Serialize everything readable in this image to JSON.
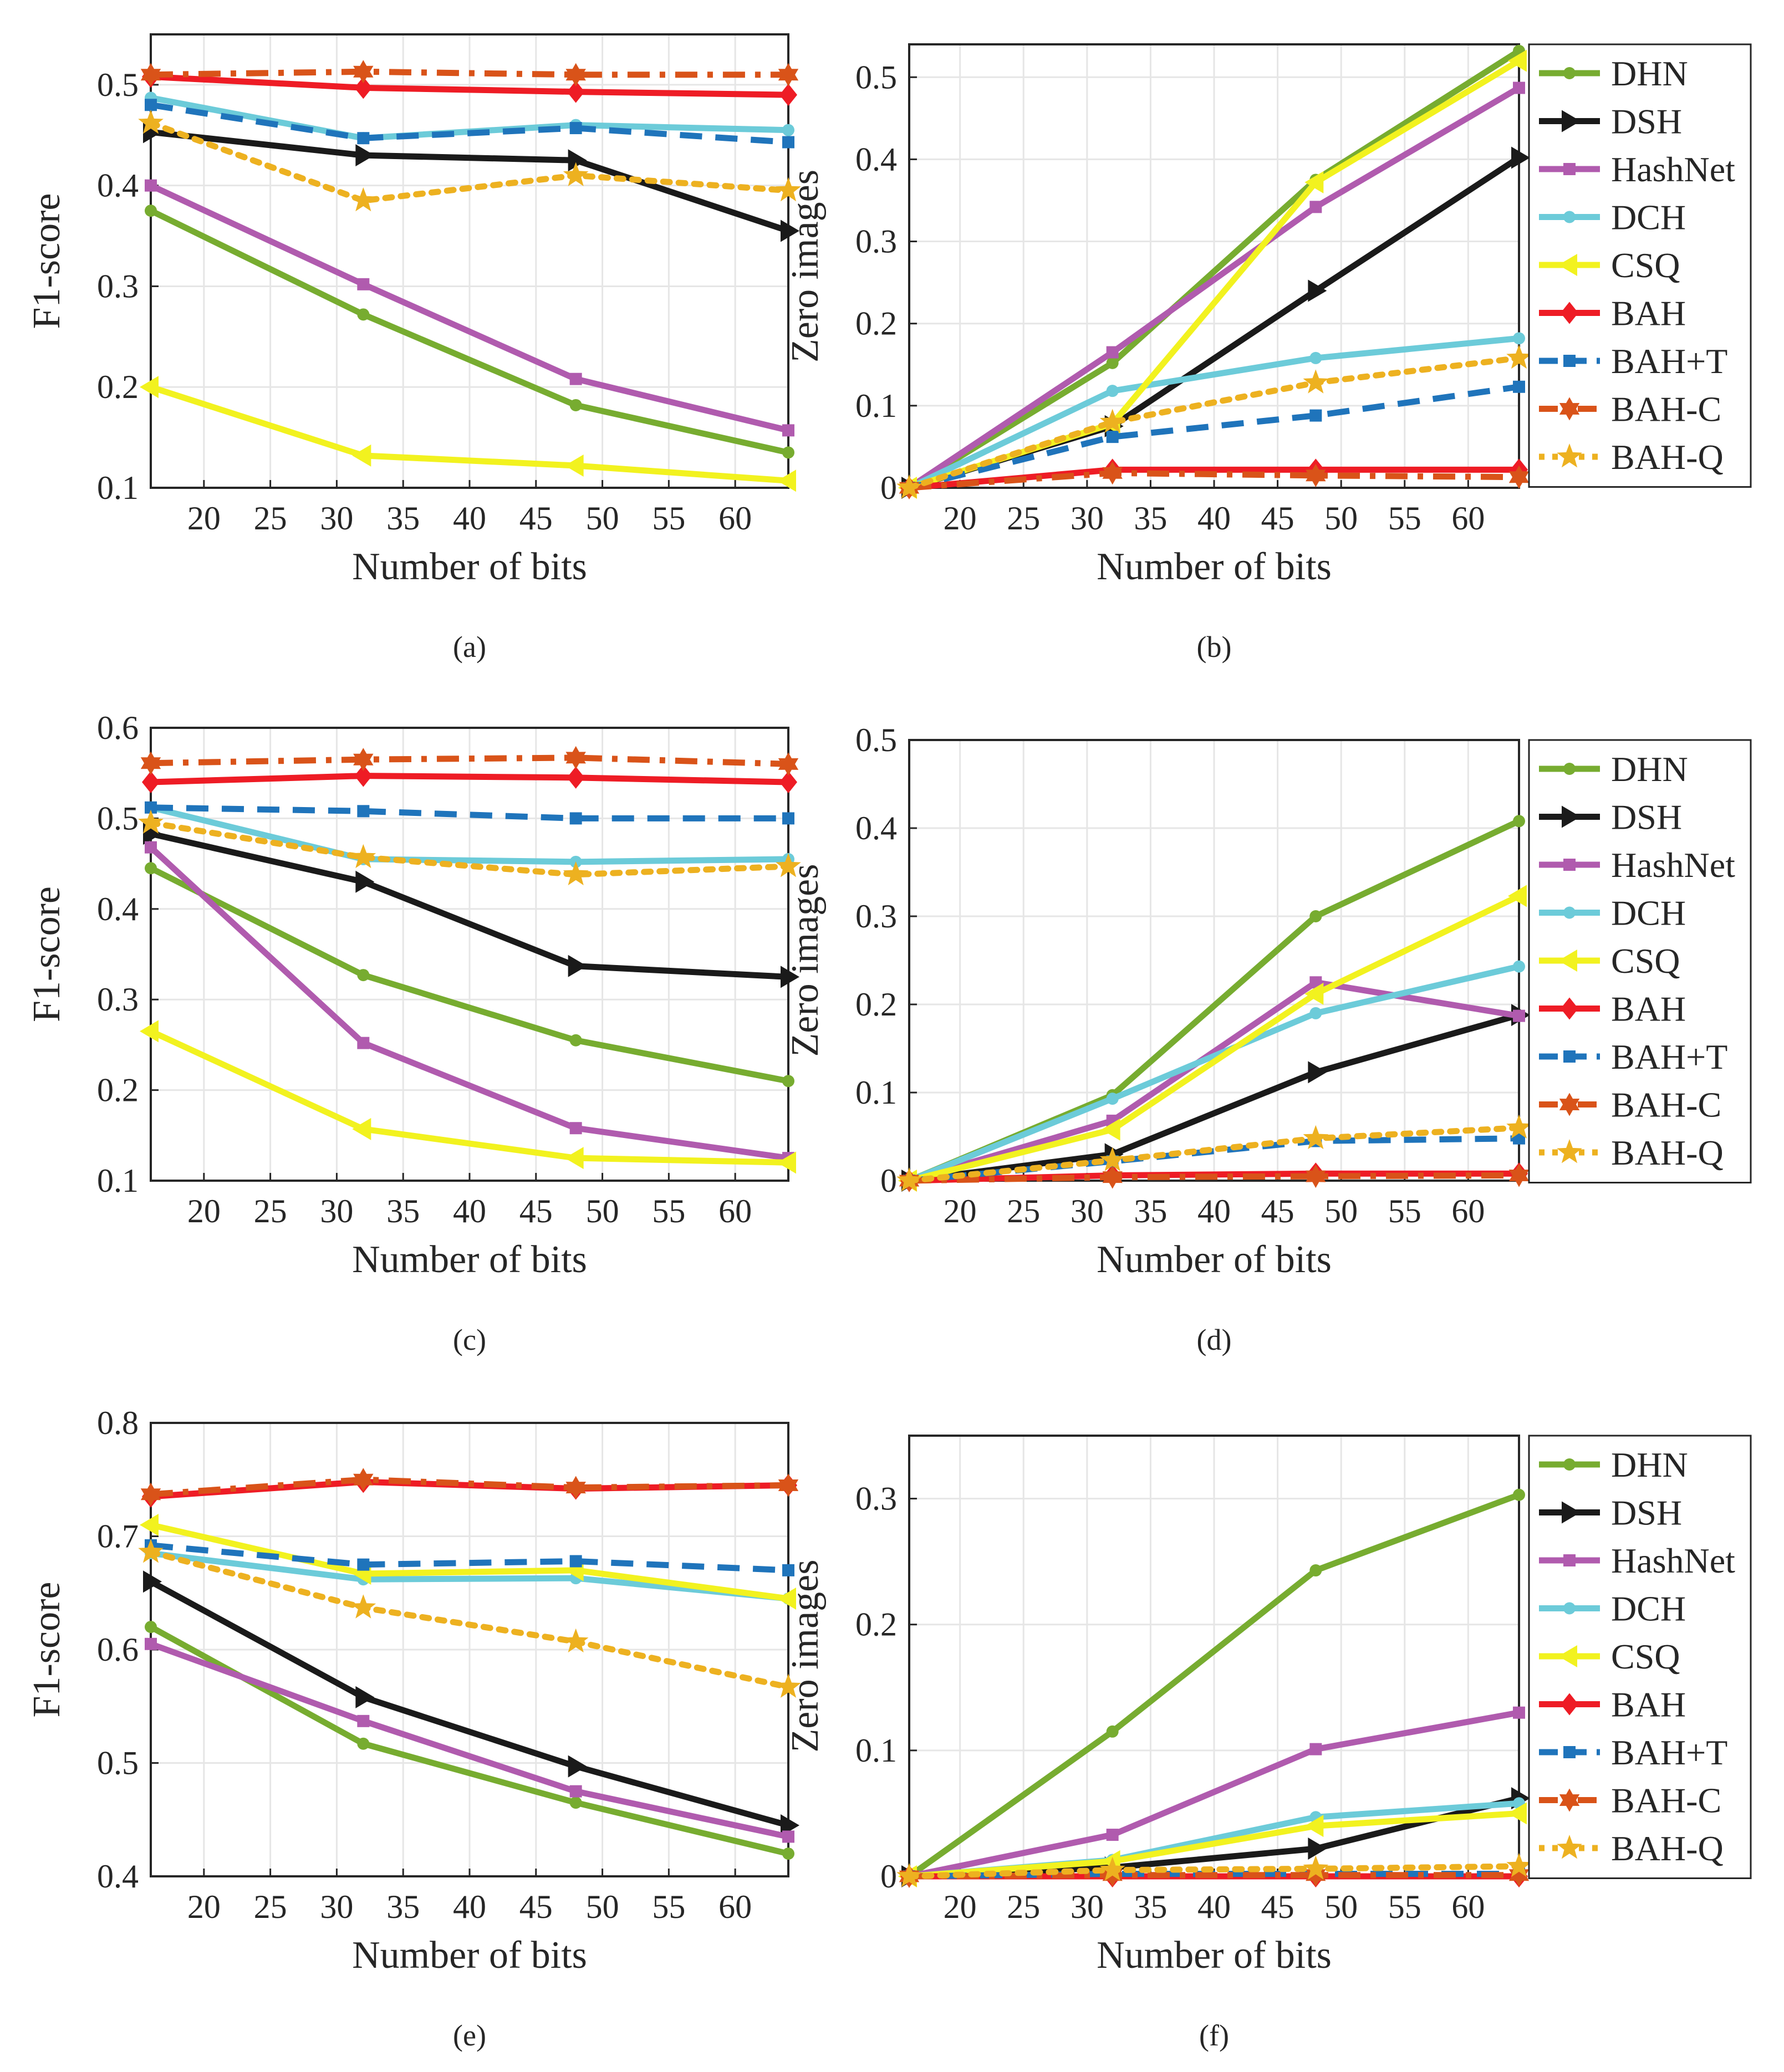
{
  "figure": {
    "series_styles": [
      {
        "name": "DHN",
        "color": "#77AC30",
        "marker": "circle",
        "dash": "solid"
      },
      {
        "name": "DSH",
        "color": "#1a1a1a",
        "marker": "tri-right",
        "dash": "solid"
      },
      {
        "name": "HashNet",
        "color": "#B05BAE",
        "marker": "square",
        "dash": "solid"
      },
      {
        "name": "DCH",
        "color": "#6CCBD9",
        "marker": "circle",
        "dash": "solid"
      },
      {
        "name": "CSQ",
        "color": "#F2F21F",
        "marker": "tri-left",
        "dash": "solid"
      },
      {
        "name": "BAH",
        "color": "#EE1C25",
        "marker": "diamond",
        "dash": "solid"
      },
      {
        "name": "BAH+T",
        "color": "#1F74BB",
        "marker": "square",
        "dash": "dash"
      },
      {
        "name": "BAH-C",
        "color": "#D95319",
        "marker": "hexagram",
        "dash": "dashdot"
      },
      {
        "name": "BAH-Q",
        "color": "#EDB120",
        "marker": "pentagram",
        "dash": "dot"
      }
    ]
  },
  "chart_data": [
    {
      "type": "line",
      "caption": "(a)",
      "xlabel": "Number of bits",
      "ylabel": "F1-score",
      "xlim": [
        16,
        64
      ],
      "ylim": [
        0.1,
        0.55
      ],
      "legend": false,
      "xticks": [
        20,
        25,
        30,
        35,
        40,
        45,
        50,
        55,
        60
      ],
      "yticks": [
        0.1,
        0.2,
        0.3,
        0.4,
        0.5
      ],
      "ytick_labels": [
        "0.1",
        "0.2",
        "0.3",
        "0.4",
        "0.5"
      ],
      "x": [
        16,
        32,
        48,
        64
      ],
      "series": [
        {
          "name": "DHN",
          "values": [
            0.375,
            0.272,
            0.182,
            0.135
          ]
        },
        {
          "name": "DSH",
          "values": [
            0.453,
            0.43,
            0.425,
            0.355
          ]
        },
        {
          "name": "HashNet",
          "values": [
            0.4,
            0.302,
            0.208,
            0.157
          ]
        },
        {
          "name": "DCH",
          "values": [
            0.487,
            0.447,
            0.46,
            0.455
          ]
        },
        {
          "name": "CSQ",
          "values": [
            0.2,
            0.132,
            0.122,
            0.107
          ]
        },
        {
          "name": "BAH",
          "values": [
            0.508,
            0.497,
            0.493,
            0.49
          ]
        },
        {
          "name": "BAH+T",
          "values": [
            0.48,
            0.447,
            0.457,
            0.443
          ]
        },
        {
          "name": "BAH-C",
          "values": [
            0.51,
            0.513,
            0.51,
            0.51
          ]
        },
        {
          "name": "BAH-Q",
          "values": [
            0.462,
            0.385,
            0.41,
            0.395
          ]
        }
      ]
    },
    {
      "type": "line",
      "caption": "(b)",
      "xlabel": "Number of bits",
      "ylabel": "Zero images",
      "xlim": [
        16,
        64
      ],
      "ylim": [
        0,
        0.54
      ],
      "legend": true,
      "xticks": [
        20,
        25,
        30,
        35,
        40,
        45,
        50,
        55,
        60
      ],
      "yticks": [
        0,
        0.1,
        0.2,
        0.3,
        0.4,
        0.5
      ],
      "ytick_labels": [
        "0",
        "0.1",
        "0.2",
        "0.3",
        "0.4",
        "0.5"
      ],
      "x": [
        16,
        32,
        48,
        64
      ],
      "series": [
        {
          "name": "DHN",
          "values": [
            0,
            0.152,
            0.375,
            0.532
          ]
        },
        {
          "name": "DSH",
          "values": [
            0,
            0.075,
            0.24,
            0.402
          ]
        },
        {
          "name": "HashNet",
          "values": [
            0,
            0.165,
            0.342,
            0.487
          ]
        },
        {
          "name": "DCH",
          "values": [
            0,
            0.118,
            0.158,
            0.182
          ]
        },
        {
          "name": "CSQ",
          "values": [
            0,
            0.078,
            0.372,
            0.52
          ]
        },
        {
          "name": "BAH",
          "values": [
            0,
            0.022,
            0.022,
            0.022
          ]
        },
        {
          "name": "BAH+T",
          "values": [
            0,
            0.062,
            0.088,
            0.123
          ]
        },
        {
          "name": "BAH-C",
          "values": [
            0,
            0.018,
            0.015,
            0.013
          ]
        },
        {
          "name": "BAH-Q",
          "values": [
            0,
            0.08,
            0.128,
            0.158
          ]
        }
      ]
    },
    {
      "type": "line",
      "caption": "(c)",
      "xlabel": "Number of bits",
      "ylabel": "F1-score",
      "xlim": [
        16,
        64
      ],
      "ylim": [
        0.1,
        0.6
      ],
      "legend": false,
      "xticks": [
        20,
        25,
        30,
        35,
        40,
        45,
        50,
        55,
        60
      ],
      "yticks": [
        0.1,
        0.2,
        0.3,
        0.4,
        0.5,
        0.6
      ],
      "ytick_labels": [
        "0.1",
        "0.2",
        "0.3",
        "0.4",
        "0.5",
        "0.6"
      ],
      "x": [
        16,
        32,
        48,
        64
      ],
      "series": [
        {
          "name": "DHN",
          "values": [
            0.445,
            0.327,
            0.255,
            0.21
          ]
        },
        {
          "name": "DSH",
          "values": [
            0.483,
            0.43,
            0.337,
            0.325
          ]
        },
        {
          "name": "HashNet",
          "values": [
            0.468,
            0.252,
            0.158,
            0.125
          ]
        },
        {
          "name": "DCH",
          "values": [
            0.512,
            0.455,
            0.452,
            0.455
          ]
        },
        {
          "name": "CSQ",
          "values": [
            0.265,
            0.157,
            0.125,
            0.12
          ]
        },
        {
          "name": "BAH",
          "values": [
            0.54,
            0.547,
            0.545,
            0.54
          ]
        },
        {
          "name": "BAH+T",
          "values": [
            0.512,
            0.508,
            0.5,
            0.5
          ]
        },
        {
          "name": "BAH-C",
          "values": [
            0.561,
            0.565,
            0.567,
            0.56
          ]
        },
        {
          "name": "BAH-Q",
          "values": [
            0.495,
            0.457,
            0.438,
            0.447
          ]
        }
      ]
    },
    {
      "type": "line",
      "caption": "(d)",
      "xlabel": "Number of bits",
      "ylabel": "Zero images",
      "xlim": [
        16,
        64
      ],
      "ylim": [
        0,
        0.5
      ],
      "legend": true,
      "xticks": [
        20,
        25,
        30,
        35,
        40,
        45,
        50,
        55,
        60
      ],
      "yticks": [
        0,
        0.1,
        0.2,
        0.3,
        0.4,
        0.5
      ],
      "ytick_labels": [
        "0",
        "0.1",
        "0.2",
        "0.3",
        "0.4",
        "0.5"
      ],
      "x": [
        16,
        32,
        48,
        64
      ],
      "series": [
        {
          "name": "DHN",
          "values": [
            0,
            0.097,
            0.3,
            0.408
          ]
        },
        {
          "name": "DSH",
          "values": [
            0,
            0.03,
            0.123,
            0.188
          ]
        },
        {
          "name": "HashNet",
          "values": [
            0,
            0.068,
            0.225,
            0.187
          ]
        },
        {
          "name": "DCH",
          "values": [
            0,
            0.093,
            0.19,
            0.243
          ]
        },
        {
          "name": "CSQ",
          "values": [
            0,
            0.058,
            0.212,
            0.323
          ]
        },
        {
          "name": "BAH",
          "values": [
            0,
            0.006,
            0.008,
            0.008
          ]
        },
        {
          "name": "BAH+T",
          "values": [
            0,
            0.022,
            0.045,
            0.048
          ]
        },
        {
          "name": "BAH-C",
          "values": [
            0,
            0.004,
            0.005,
            0.006
          ]
        },
        {
          "name": "BAH-Q",
          "values": [
            0,
            0.023,
            0.048,
            0.06
          ]
        }
      ]
    },
    {
      "type": "line",
      "caption": "(e)",
      "xlabel": "Number of bits",
      "ylabel": "F1-score",
      "xlim": [
        16,
        64
      ],
      "ylim": [
        0.4,
        0.8
      ],
      "legend": false,
      "xticks": [
        20,
        25,
        30,
        35,
        40,
        45,
        50,
        55,
        60
      ],
      "yticks": [
        0.4,
        0.5,
        0.6,
        0.7,
        0.8
      ],
      "ytick_labels": [
        "0.4",
        "0.5",
        "0.6",
        "0.7",
        "0.8"
      ],
      "x": [
        16,
        32,
        48,
        64
      ],
      "series": [
        {
          "name": "DHN",
          "values": [
            0.62,
            0.517,
            0.465,
            0.42
          ]
        },
        {
          "name": "DSH",
          "values": [
            0.66,
            0.558,
            0.497,
            0.445
          ]
        },
        {
          "name": "HashNet",
          "values": [
            0.605,
            0.537,
            0.475,
            0.435
          ]
        },
        {
          "name": "DCH",
          "values": [
            0.685,
            0.662,
            0.663,
            0.645
          ]
        },
        {
          "name": "CSQ",
          "values": [
            0.71,
            0.667,
            0.67,
            0.645
          ]
        },
        {
          "name": "BAH",
          "values": [
            0.735,
            0.748,
            0.742,
            0.745
          ]
        },
        {
          "name": "BAH+T",
          "values": [
            0.692,
            0.675,
            0.678,
            0.67
          ]
        },
        {
          "name": "BAH-C",
          "values": [
            0.737,
            0.75,
            0.743,
            0.745
          ]
        },
        {
          "name": "BAH-Q",
          "values": [
            0.686,
            0.637,
            0.607,
            0.567
          ]
        }
      ]
    },
    {
      "type": "line",
      "caption": "(f)",
      "xlabel": "Number of bits",
      "ylabel": "Zero images",
      "xlim": [
        16,
        64
      ],
      "ylim": [
        0,
        0.35
      ],
      "legend": true,
      "xticks": [
        20,
        25,
        30,
        35,
        40,
        45,
        50,
        55,
        60
      ],
      "yticks": [
        0,
        0.1,
        0.2,
        0.3
      ],
      "ytick_labels": [
        "0",
        "0.1",
        "0.2",
        "0.3"
      ],
      "x": [
        16,
        32,
        48,
        64
      ],
      "series": [
        {
          "name": "DHN",
          "values": [
            0,
            0.115,
            0.243,
            0.303
          ]
        },
        {
          "name": "DSH",
          "values": [
            0,
            0.007,
            0.022,
            0.062
          ]
        },
        {
          "name": "HashNet",
          "values": [
            0,
            0.033,
            0.101,
            0.13
          ]
        },
        {
          "name": "DCH",
          "values": [
            0,
            0.013,
            0.047,
            0.058
          ]
        },
        {
          "name": "CSQ",
          "values": [
            0,
            0.012,
            0.04,
            0.05
          ]
        },
        {
          "name": "BAH",
          "values": [
            0,
            0.0,
            0.0,
            0.0
          ]
        },
        {
          "name": "BAH+T",
          "values": [
            0,
            0.002,
            0.002,
            0.002
          ]
        },
        {
          "name": "BAH-C",
          "values": [
            0,
            0.001,
            0.001,
            0.001
          ]
        },
        {
          "name": "BAH-Q",
          "values": [
            0,
            0.005,
            0.006,
            0.008
          ]
        }
      ]
    }
  ]
}
